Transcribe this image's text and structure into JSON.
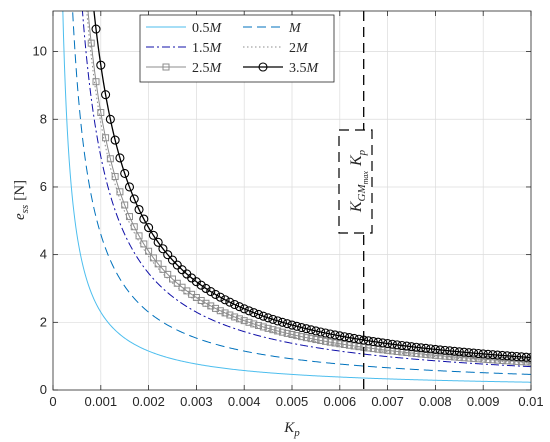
{
  "chart_data": {
    "type": "line",
    "xlabel": "K",
    "xlabel_sub": "p",
    "ylabel": "e",
    "ylabel_sub": "ss",
    "ylabel_unit": "[N]",
    "xlim": [
      0,
      0.01
    ],
    "ylim": [
      0,
      11.2
    ],
    "x_ticks": [
      0,
      0.001,
      0.002,
      0.003,
      0.004,
      0.005,
      0.006,
      0.007,
      0.008,
      0.009,
      0.01
    ],
    "x_tick_labels": [
      "0",
      "0.001",
      "0.002",
      "0.003",
      "0.004",
      "0.005",
      "0.006",
      "0.007",
      "0.008",
      "0.009",
      "0.01"
    ],
    "y_ticks": [
      0,
      2,
      4,
      6,
      8,
      10
    ],
    "y_tick_labels": [
      "0",
      "2",
      "4",
      "6",
      "8",
      "10"
    ],
    "grid": true,
    "legend_position": "top-center",
    "series": [
      {
        "name": "0.5",
        "name_suffix": "M",
        "k": 0.0023,
        "color": "#4DBEEE",
        "dash": "",
        "marker": "none"
      },
      {
        "name": "",
        "name_suffix": "M",
        "k": 0.0046,
        "color": "#0072BD",
        "dash": "9,5",
        "marker": "none"
      },
      {
        "name": "1.5",
        "name_suffix": "M",
        "k": 0.0069,
        "color": "#1010A8",
        "dash": "8,3,2,3",
        "marker": "none"
      },
      {
        "name": "2",
        "name_suffix": "M",
        "k": 0.0079,
        "color": "#8C8C8C",
        "dash": "1.5,2.5",
        "marker": "none"
      },
      {
        "name": "2.5",
        "name_suffix": "M",
        "k": 0.0082,
        "color": "#8C8C8C",
        "dash": "",
        "marker": "square"
      },
      {
        "name": "3.5",
        "name_suffix": "M",
        "k": 0.0096,
        "color": "#000000",
        "dash": "",
        "marker": "circle"
      }
    ],
    "vertical_line": {
      "x": 0.0065,
      "color": "#000000",
      "dash": "10,6"
    },
    "annotation": {
      "main": "K",
      "sub": "GM",
      "subsub": "max",
      "suffix": "K",
      "suffix_sub": "p"
    }
  }
}
